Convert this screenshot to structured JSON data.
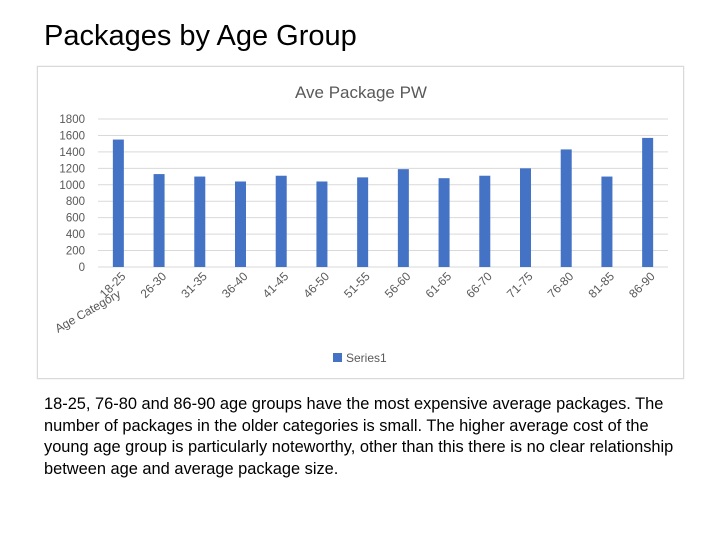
{
  "slide": {
    "title": "Packages by Age Group",
    "body": "18-25, 76-80 and 86-90 age groups have the most expensive average packages. The number of packages in the older categories is small. The higher average cost of the young age group is particularly noteworthy, other than this there is no clear relationship between age and average package size."
  },
  "colors": {
    "bar": "#4472c4",
    "gridline": "#d9d9d9",
    "axis_text": "#595959"
  },
  "chart_data": {
    "type": "bar",
    "title": "Ave Package PW",
    "xlabel": "Age Category",
    "ylabel": "",
    "ylim": [
      0,
      1800
    ],
    "yticks": [
      0,
      200,
      400,
      600,
      800,
      1000,
      1200,
      1400,
      1600,
      1800
    ],
    "grid": true,
    "legend": "bottom",
    "categories": [
      "18-25",
      "26-30",
      "31-35",
      "36-40",
      "41-45",
      "46-50",
      "51-55",
      "56-60",
      "61-65",
      "66-70",
      "71-75",
      "76-80",
      "81-85",
      "86-90"
    ],
    "series": [
      {
        "name": "Series1",
        "values": [
          1550,
          1130,
          1100,
          1040,
          1110,
          1040,
          1090,
          1190,
          1080,
          1110,
          1200,
          1430,
          1100,
          1570
        ]
      }
    ]
  }
}
